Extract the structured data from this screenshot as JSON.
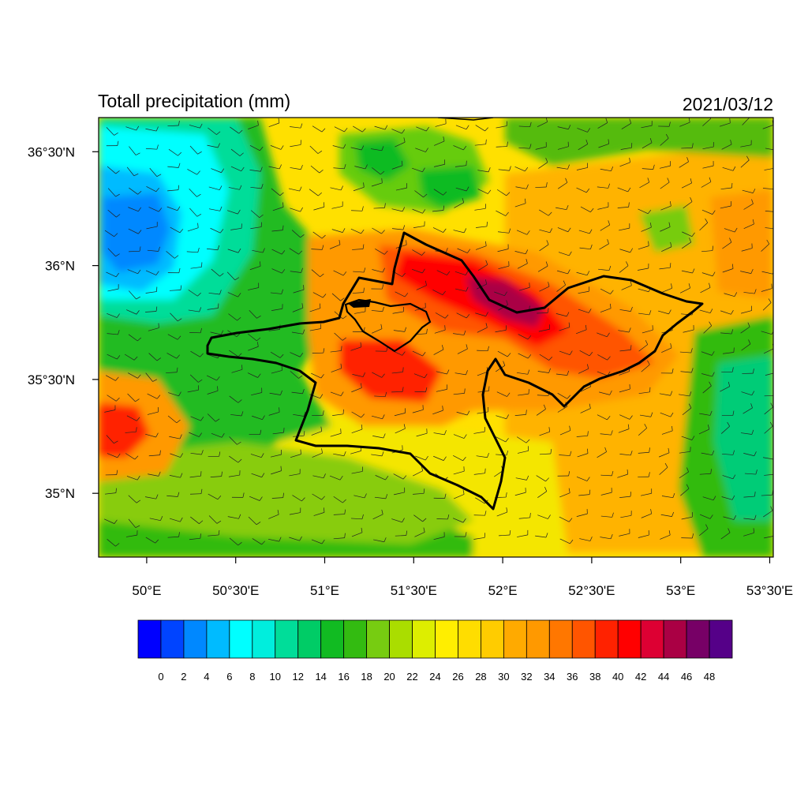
{
  "figure": {
    "title": "Totall precipitation (mm)",
    "date": "2021/03/12"
  },
  "map": {
    "variable": "Totall precipitation",
    "units": "mm",
    "lon_range": [
      49.73,
      53.52
    ],
    "lat_range": [
      34.72,
      36.65
    ],
    "lon_ticks": [
      {
        "value": 50.0,
        "label": "50°E"
      },
      {
        "value": 50.5,
        "label": "50°30'E"
      },
      {
        "value": 51.0,
        "label": "51°E"
      },
      {
        "value": 51.5,
        "label": "51°30'E"
      },
      {
        "value": 52.0,
        "label": "52°E"
      },
      {
        "value": 52.5,
        "label": "52°30'E"
      },
      {
        "value": 53.0,
        "label": "53°E"
      },
      {
        "value": 53.5,
        "label": "53°30'E"
      }
    ],
    "lat_ticks": [
      {
        "value": 35.0,
        "label": "35°N"
      },
      {
        "value": 35.5,
        "label": "35°30'N"
      },
      {
        "value": 36.0,
        "label": "36°N"
      },
      {
        "value": 36.5,
        "label": "36°30'N"
      }
    ],
    "overlay": "wind barbs",
    "boundary": "province outline"
  },
  "colorbar": {
    "levels": [
      0,
      2,
      4,
      6,
      8,
      10,
      12,
      14,
      16,
      18,
      20,
      22,
      24,
      26,
      28,
      30,
      32,
      34,
      36,
      38,
      40,
      42,
      44,
      46,
      48
    ],
    "colors": [
      "#0000ff",
      "#0044ff",
      "#0088ff",
      "#00bbff",
      "#00ffff",
      "#00eedd",
      "#00dd99",
      "#00cc66",
      "#11bb22",
      "#33bb11",
      "#77cc11",
      "#aadd00",
      "#ddee00",
      "#ffee00",
      "#ffdd00",
      "#ffcc00",
      "#ffaa00",
      "#ff9900",
      "#ff7700",
      "#ff5500",
      "#ff2200",
      "#ff0000",
      "#dd0033",
      "#aa0044",
      "#770066",
      "#550088"
    ]
  }
}
